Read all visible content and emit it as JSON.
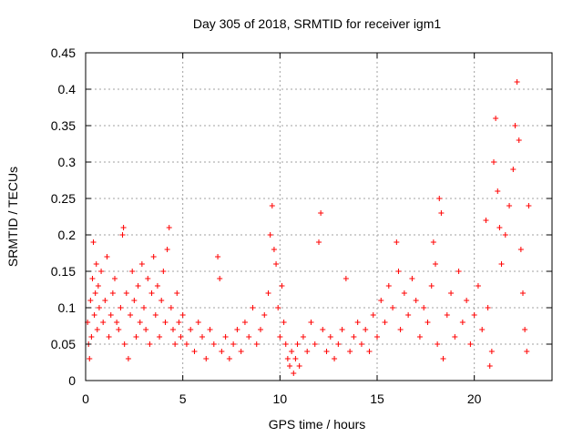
{
  "chart_data": {
    "type": "scatter",
    "title": "Day 305 of 2018, SRMTID for receiver igm1",
    "xlabel": "GPS time / hours",
    "ylabel": "SRMTID / TECUs",
    "xlim": [
      0,
      24
    ],
    "ylim": [
      0,
      0.45
    ],
    "xticks": [
      0,
      5,
      10,
      15,
      20
    ],
    "yticks": [
      0,
      0.05,
      0.1,
      0.15,
      0.2,
      0.25,
      0.3,
      0.35,
      0.4,
      0.45
    ],
    "xtick_labels": [
      "0",
      "5",
      "10",
      "15",
      "20"
    ],
    "ytick_labels": [
      "0",
      "0.05",
      "0.1",
      "0.15",
      "0.2",
      "0.25",
      "0.3",
      "0.35",
      "0.4",
      "0.45"
    ],
    "grid": true,
    "marker": "+",
    "series": [
      {
        "name": "SRMTID",
        "color": "#ff0000",
        "points": [
          [
            0.1,
            0.08
          ],
          [
            0.15,
            0.05
          ],
          [
            0.2,
            0.03
          ],
          [
            0.25,
            0.11
          ],
          [
            0.3,
            0.06
          ],
          [
            0.35,
            0.14
          ],
          [
            0.4,
            0.19
          ],
          [
            0.45,
            0.09
          ],
          [
            0.5,
            0.12
          ],
          [
            0.55,
            0.16
          ],
          [
            0.6,
            0.07
          ],
          [
            0.65,
            0.13
          ],
          [
            0.7,
            0.1
          ],
          [
            0.8,
            0.15
          ],
          [
            0.9,
            0.08
          ],
          [
            1.0,
            0.11
          ],
          [
            1.1,
            0.17
          ],
          [
            1.2,
            0.06
          ],
          [
            1.3,
            0.09
          ],
          [
            1.4,
            0.12
          ],
          [
            1.5,
            0.14
          ],
          [
            1.6,
            0.08
          ],
          [
            1.7,
            0.07
          ],
          [
            1.8,
            0.1
          ],
          [
            1.9,
            0.2
          ],
          [
            1.95,
            0.21
          ],
          [
            2.0,
            0.05
          ],
          [
            2.1,
            0.12
          ],
          [
            2.2,
            0.03
          ],
          [
            2.3,
            0.09
          ],
          [
            2.4,
            0.15
          ],
          [
            2.5,
            0.11
          ],
          [
            2.6,
            0.06
          ],
          [
            2.7,
            0.13
          ],
          [
            2.8,
            0.08
          ],
          [
            2.9,
            0.16
          ],
          [
            3.0,
            0.1
          ],
          [
            3.1,
            0.07
          ],
          [
            3.2,
            0.14
          ],
          [
            3.3,
            0.05
          ],
          [
            3.4,
            0.12
          ],
          [
            3.5,
            0.17
          ],
          [
            3.6,
            0.09
          ],
          [
            3.7,
            0.13
          ],
          [
            3.8,
            0.06
          ],
          [
            3.9,
            0.11
          ],
          [
            4.0,
            0.15
          ],
          [
            4.1,
            0.08
          ],
          [
            4.2,
            0.18
          ],
          [
            4.3,
            0.21
          ],
          [
            4.4,
            0.1
          ],
          [
            4.5,
            0.07
          ],
          [
            4.6,
            0.05
          ],
          [
            4.7,
            0.12
          ],
          [
            4.8,
            0.08
          ],
          [
            4.9,
            0.06
          ],
          [
            5.0,
            0.09
          ],
          [
            5.2,
            0.05
          ],
          [
            5.4,
            0.07
          ],
          [
            5.6,
            0.04
          ],
          [
            5.8,
            0.08
          ],
          [
            6.0,
            0.06
          ],
          [
            6.2,
            0.03
          ],
          [
            6.4,
            0.07
          ],
          [
            6.6,
            0.05
          ],
          [
            6.8,
            0.17
          ],
          [
            6.9,
            0.14
          ],
          [
            7.0,
            0.04
          ],
          [
            7.2,
            0.06
          ],
          [
            7.4,
            0.03
          ],
          [
            7.6,
            0.05
          ],
          [
            7.8,
            0.07
          ],
          [
            8.0,
            0.04
          ],
          [
            8.2,
            0.08
          ],
          [
            8.4,
            0.06
          ],
          [
            8.6,
            0.1
          ],
          [
            8.8,
            0.05
          ],
          [
            9.0,
            0.07
          ],
          [
            9.2,
            0.09
          ],
          [
            9.4,
            0.12
          ],
          [
            9.5,
            0.2
          ],
          [
            9.6,
            0.24
          ],
          [
            9.7,
            0.18
          ],
          [
            9.8,
            0.16
          ],
          [
            9.9,
            0.1
          ],
          [
            10.0,
            0.06
          ],
          [
            10.1,
            0.13
          ],
          [
            10.2,
            0.08
          ],
          [
            10.3,
            0.05
          ],
          [
            10.4,
            0.03
          ],
          [
            10.5,
            0.02
          ],
          [
            10.6,
            0.04
          ],
          [
            10.7,
            0.01
          ],
          [
            10.8,
            0.03
          ],
          [
            10.9,
            0.05
          ],
          [
            11.0,
            0.02
          ],
          [
            11.2,
            0.06
          ],
          [
            11.4,
            0.04
          ],
          [
            11.6,
            0.08
          ],
          [
            11.8,
            0.05
          ],
          [
            12.0,
            0.19
          ],
          [
            12.1,
            0.23
          ],
          [
            12.2,
            0.07
          ],
          [
            12.4,
            0.04
          ],
          [
            12.6,
            0.06
          ],
          [
            12.8,
            0.03
          ],
          [
            13.0,
            0.05
          ],
          [
            13.2,
            0.07
          ],
          [
            13.4,
            0.14
          ],
          [
            13.6,
            0.04
          ],
          [
            13.8,
            0.06
          ],
          [
            14.0,
            0.08
          ],
          [
            14.2,
            0.05
          ],
          [
            14.4,
            0.07
          ],
          [
            14.6,
            0.04
          ],
          [
            14.8,
            0.09
          ],
          [
            15.0,
            0.06
          ],
          [
            15.2,
            0.11
          ],
          [
            15.4,
            0.08
          ],
          [
            15.6,
            0.13
          ],
          [
            15.8,
            0.1
          ],
          [
            16.0,
            0.19
          ],
          [
            16.1,
            0.15
          ],
          [
            16.2,
            0.07
          ],
          [
            16.4,
            0.12
          ],
          [
            16.6,
            0.09
          ],
          [
            16.8,
            0.14
          ],
          [
            17.0,
            0.11
          ],
          [
            17.2,
            0.06
          ],
          [
            17.4,
            0.1
          ],
          [
            17.6,
            0.08
          ],
          [
            17.8,
            0.13
          ],
          [
            17.9,
            0.19
          ],
          [
            18.0,
            0.16
          ],
          [
            18.1,
            0.05
          ],
          [
            18.2,
            0.25
          ],
          [
            18.3,
            0.23
          ],
          [
            18.4,
            0.03
          ],
          [
            18.6,
            0.09
          ],
          [
            18.8,
            0.12
          ],
          [
            19.0,
            0.06
          ],
          [
            19.2,
            0.15
          ],
          [
            19.4,
            0.08
          ],
          [
            19.6,
            0.11
          ],
          [
            19.8,
            0.05
          ],
          [
            20.0,
            0.09
          ],
          [
            20.2,
            0.13
          ],
          [
            20.4,
            0.07
          ],
          [
            20.6,
            0.22
          ],
          [
            20.7,
            0.1
          ],
          [
            20.8,
            0.02
          ],
          [
            20.9,
            0.04
          ],
          [
            21.0,
            0.3
          ],
          [
            21.1,
            0.36
          ],
          [
            21.2,
            0.26
          ],
          [
            21.3,
            0.21
          ],
          [
            21.4,
            0.16
          ],
          [
            21.6,
            0.2
          ],
          [
            21.8,
            0.24
          ],
          [
            22.0,
            0.29
          ],
          [
            22.1,
            0.35
          ],
          [
            22.2,
            0.41
          ],
          [
            22.3,
            0.33
          ],
          [
            22.4,
            0.18
          ],
          [
            22.5,
            0.12
          ],
          [
            22.6,
            0.07
          ],
          [
            22.7,
            0.04
          ],
          [
            22.8,
            0.24
          ]
        ]
      }
    ]
  }
}
